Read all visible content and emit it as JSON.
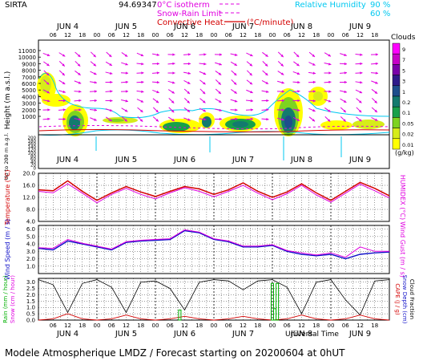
{
  "header": {
    "station": "SIRTA",
    "coords": "94.69347",
    "isotherm": "0°C isotherm",
    "snow_rain": "Snow-Rain Limit",
    "convective": "Convective Heat.",
    "convective_unit": "(°C/minute)",
    "rh_label": "Relative Humidity",
    "rh_90": "90 %",
    "rh_60": "60 %"
  },
  "footer": {
    "axis_label": "Universal Time",
    "model_line": "Modele Atmospherique LMDZ / Forecast starting on 20200604 at 0hUT"
  },
  "time_axis": {
    "day_labels": [
      "JUN  4",
      "JUN  5",
      "JUN  6",
      "JUN  7",
      "JUN  8",
      "JUN  9"
    ],
    "hour_ticks": [
      "06",
      "12",
      "18",
      "00",
      "06",
      "12",
      "18",
      "00",
      "06",
      "12",
      "18",
      "00",
      "06",
      "12",
      "18",
      "00",
      "06",
      "12",
      "18",
      "00",
      "06",
      "12",
      "18"
    ]
  },
  "colors": {
    "red": "#d40000",
    "magenta": "#e000e0",
    "cyan": "#00c8f0",
    "blue": "#1010c8",
    "green": "#00b000",
    "black": "#000000"
  },
  "chart_data": [
    {
      "type": "heatmap",
      "panel": "clouds",
      "ylabel": "Height (m a.s.l.)",
      "ylabel_low": "Up to 200 m a.g.l.",
      "y_ticks_upper": [
        "11000",
        "10000",
        "9000",
        "8000",
        "7000",
        "6000",
        "5000",
        "4000",
        "3000",
        "2000",
        "1000"
      ],
      "y_ticks_lower": [
        "200",
        "180",
        "160",
        "140",
        "120",
        "100",
        "80",
        "60",
        "40",
        "20",
        "0"
      ],
      "colorbar_title": "Clouds",
      "colorbar_unit": "(g/kg)",
      "colorbar_ticks": [
        "9",
        "7",
        "5",
        "3",
        "1",
        "0.2",
        "0.1",
        "0.05",
        "0.02",
        "0.01"
      ],
      "colorbar_colors": [
        "#ff00ff",
        "#c800c8",
        "#7a00aa",
        "#2e1a8a",
        "#1d4e8c",
        "#137a6e",
        "#18a04a",
        "#7ed321",
        "#d6ec1a",
        "#ffff00"
      ]
    },
    {
      "type": "line",
      "panel": "temperature",
      "ylabel": "Temperature (°C)",
      "ylabel_right": "HUMIDEX (°C)",
      "y_ticks": [
        "20.0",
        "16.0",
        "12.0",
        "8.0",
        "4.0"
      ],
      "ylim": [
        4,
        20
      ],
      "x": [
        0,
        6,
        12,
        18,
        24,
        30,
        36,
        42,
        48,
        54,
        60,
        66,
        72,
        78,
        84,
        90,
        96,
        102,
        108,
        114,
        120,
        126,
        132,
        138,
        144
      ],
      "series": [
        {
          "name": "Temperature",
          "values": [
            14.5,
            14.2,
            17.5,
            14.0,
            11.0,
            13.5,
            15.6,
            13.8,
            12.3,
            14.0,
            15.6,
            14.8,
            13.0,
            14.5,
            16.8,
            14.0,
            12.0,
            13.8,
            16.5,
            13.5,
            11.0,
            14.0,
            17.0,
            15.0,
            12.5
          ]
        },
        {
          "name": "HUMIDEX",
          "values": [
            14.0,
            13.5,
            16.5,
            13.4,
            10.2,
            13.0,
            15.0,
            13.0,
            11.5,
            13.5,
            15.2,
            14.0,
            12.2,
            14.0,
            16.0,
            13.4,
            11.2,
            13.2,
            16.0,
            12.8,
            10.4,
            13.4,
            16.4,
            14.2,
            11.8
          ]
        }
      ]
    },
    {
      "type": "line",
      "panel": "wind",
      "ylabel": "Wind Speed (m / s)",
      "ylabel_right": "Wind Gust (m / s)",
      "y_ticks": [
        "6.0",
        "5.0",
        "4.0",
        "3.0",
        "2.0",
        "1.0"
      ],
      "ylim": [
        0,
        6.5
      ],
      "x": [
        0,
        6,
        12,
        18,
        24,
        30,
        36,
        42,
        48,
        54,
        60,
        66,
        72,
        78,
        84,
        90,
        96,
        102,
        108,
        114,
        120,
        126,
        132,
        138,
        144
      ],
      "series": [
        {
          "name": "Wind Speed",
          "values": [
            3.4,
            3.2,
            4.4,
            4.0,
            3.6,
            3.2,
            4.2,
            4.4,
            4.5,
            4.6,
            5.8,
            5.5,
            4.6,
            4.3,
            3.6,
            3.6,
            3.8,
            3.0,
            2.6,
            2.4,
            2.6,
            2.0,
            2.6,
            2.8,
            2.9
          ]
        },
        {
          "name": "Wind Gust",
          "values": [
            3.5,
            3.4,
            4.6,
            4.1,
            3.7,
            3.3,
            4.3,
            4.5,
            4.6,
            4.7,
            5.9,
            5.6,
            4.7,
            4.4,
            3.7,
            3.7,
            3.9,
            3.1,
            2.8,
            2.5,
            2.8,
            2.2,
            3.6,
            3.0,
            3.0
          ]
        }
      ]
    },
    {
      "type": "line",
      "panel": "rain",
      "ylabel": "Rain (mm / hour)",
      "ylabel_mid": "Snow (cm / hour)",
      "ylabel_right": [
        "CAPE (J / g)",
        "Snow Depth (cm)",
        "Cloud Fraction"
      ],
      "y_ticks": [
        "3.0",
        "2.5",
        "2.0",
        "1.5",
        "1.0",
        "0.5",
        "0.0"
      ],
      "ylim": [
        0,
        3.3
      ],
      "x": [
        0,
        6,
        12,
        18,
        24,
        30,
        36,
        42,
        48,
        54,
        60,
        66,
        72,
        78,
        84,
        90,
        96,
        102,
        108,
        114,
        120,
        126,
        132,
        138,
        144
      ],
      "series": [
        {
          "name": "Cloud Fraction",
          "values": [
            3.2,
            2.8,
            0.6,
            2.9,
            3.2,
            2.6,
            0.6,
            3.0,
            3.1,
            2.5,
            0.8,
            3.0,
            3.2,
            3.1,
            2.4,
            3.1,
            3.2,
            2.6,
            0.5,
            3.0,
            3.2,
            1.6,
            0.4,
            3.1,
            3.2
          ]
        },
        {
          "name": "CAPE",
          "values": [
            0.0,
            0.1,
            0.5,
            0.1,
            0.0,
            0.1,
            0.4,
            0.1,
            0.0,
            0.1,
            0.3,
            0.1,
            0.0,
            0.1,
            0.3,
            0.1,
            0.0,
            0.1,
            0.4,
            0.1,
            0.0,
            0.1,
            0.4,
            0.1,
            0.0
          ]
        }
      ],
      "rain_bars": [
        {
          "x": 58,
          "value": 0.8
        },
        {
          "x": 96,
          "value": 2.9
        },
        {
          "x": 97,
          "value": 0.9
        },
        {
          "x": 98,
          "value": 2.9
        }
      ]
    }
  ]
}
